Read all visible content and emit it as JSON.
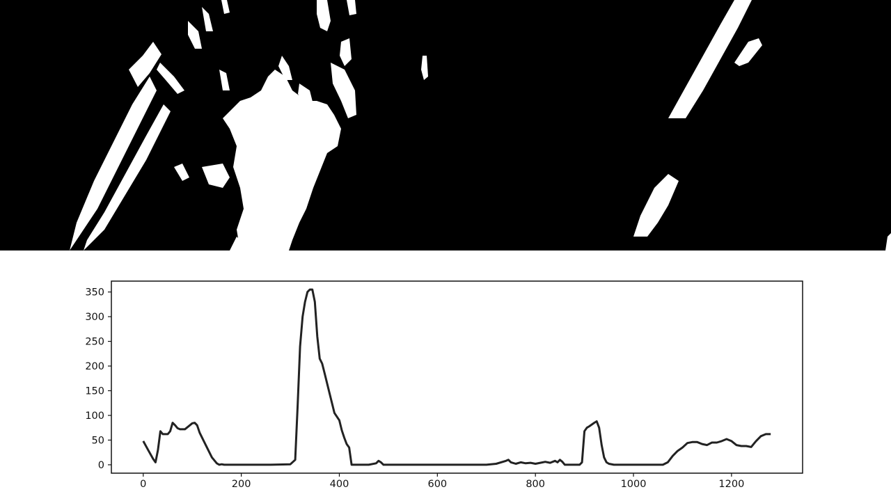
{
  "image": {
    "description_panel": "binary-thresholded-warped-lane-image",
    "colors": {
      "background": "#000000",
      "pixels": "#ffffff"
    }
  },
  "chart_data": {
    "type": "line",
    "title": "",
    "xlabel": "",
    "ylabel": "",
    "xlim": [
      -65,
      1345
    ],
    "ylim": [
      -17,
      372
    ],
    "xticks": [
      0,
      200,
      400,
      600,
      800,
      1000,
      1200
    ],
    "yticks": [
      0,
      50,
      100,
      150,
      200,
      250,
      300,
      350
    ],
    "grid": false,
    "line_color": "#222222",
    "series": [
      {
        "x": [
          0,
          10,
          20,
          25,
          30,
          35,
          40,
          50,
          55,
          60,
          65,
          70,
          75,
          85,
          95,
          100,
          105,
          110,
          115,
          120,
          130,
          140,
          150,
          155,
          160,
          165,
          170,
          180,
          200,
          220,
          260,
          300,
          310,
          315,
          320,
          325,
          330,
          335,
          340,
          345,
          350,
          355,
          360,
          365,
          370,
          380,
          390,
          400,
          405,
          410,
          415,
          420,
          425,
          430,
          440,
          460,
          475,
          480,
          485,
          490,
          500,
          540,
          580,
          620,
          660,
          700,
          720,
          740,
          745,
          750,
          760,
          770,
          780,
          790,
          800,
          810,
          820,
          830,
          840,
          845,
          850,
          855,
          860,
          870,
          890,
          895,
          900,
          905,
          910,
          920,
          925,
          930,
          935,
          940,
          945,
          950,
          960,
          980,
          1000,
          1030,
          1060,
          1070,
          1080,
          1090,
          1100,
          1110,
          1120,
          1130,
          1140,
          1150,
          1160,
          1170,
          1180,
          1190,
          1200,
          1210,
          1220,
          1230,
          1240,
          1250,
          1260,
          1270,
          1280
        ],
        "y": [
          48,
          30,
          12,
          5,
          30,
          68,
          62,
          62,
          68,
          85,
          80,
          74,
          72,
          72,
          80,
          84,
          85,
          80,
          65,
          55,
          35,
          15,
          3,
          0,
          1,
          0,
          0,
          0,
          0,
          0,
          0,
          1,
          10,
          120,
          240,
          300,
          330,
          350,
          355,
          355,
          330,
          260,
          215,
          205,
          185,
          145,
          105,
          90,
          70,
          55,
          42,
          35,
          0,
          0,
          0,
          0,
          3,
          8,
          5,
          0,
          0,
          0,
          0,
          0,
          0,
          0,
          2,
          8,
          10,
          5,
          2,
          5,
          3,
          4,
          2,
          4,
          6,
          4,
          8,
          5,
          10,
          6,
          0,
          0,
          0,
          5,
          68,
          75,
          78,
          85,
          88,
          75,
          40,
          15,
          5,
          2,
          0,
          0,
          0,
          0,
          0,
          5,
          18,
          28,
          35,
          44,
          46,
          46,
          42,
          40,
          45,
          45,
          48,
          52,
          48,
          40,
          38,
          38,
          36,
          48,
          58,
          62,
          62
        ]
      }
    ]
  }
}
